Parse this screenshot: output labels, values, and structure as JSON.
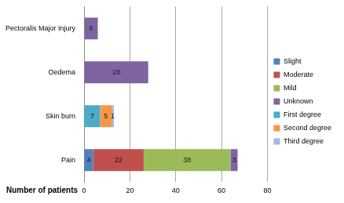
{
  "chart_data": {
    "type": "bar",
    "orientation": "horizontal",
    "stacked": true,
    "data_labels": true,
    "grid": true,
    "legend": "right",
    "x_label": "Number of patients",
    "categories": [
      "Pectoralis Major Injury",
      "Oedema",
      "Skin burn",
      "Pain"
    ],
    "series": [
      {
        "name": "Slight",
        "color": "#4f81bd",
        "values": [
          null,
          null,
          null,
          4
        ]
      },
      {
        "name": "Moderate",
        "color": "#c0504d",
        "values": [
          null,
          null,
          null,
          22
        ]
      },
      {
        "name": "Mild",
        "color": "#9bbb59",
        "values": [
          null,
          null,
          null,
          38
        ]
      },
      {
        "name": "Unknown",
        "color": "#8064a2",
        "values": [
          6,
          28,
          null,
          3
        ]
      },
      {
        "name": "First degree",
        "color": "#4bacc6",
        "values": [
          null,
          null,
          7,
          null
        ]
      },
      {
        "name": "Second degree",
        "color": "#f79646",
        "values": [
          null,
          null,
          5,
          null
        ]
      },
      {
        "name": "Third degree",
        "color": "#a5b9da",
        "values": [
          null,
          null,
          1,
          null
        ]
      }
    ],
    "xlim": [
      0,
      80
    ],
    "xticks": [
      0,
      20,
      40,
      60,
      80
    ]
  }
}
